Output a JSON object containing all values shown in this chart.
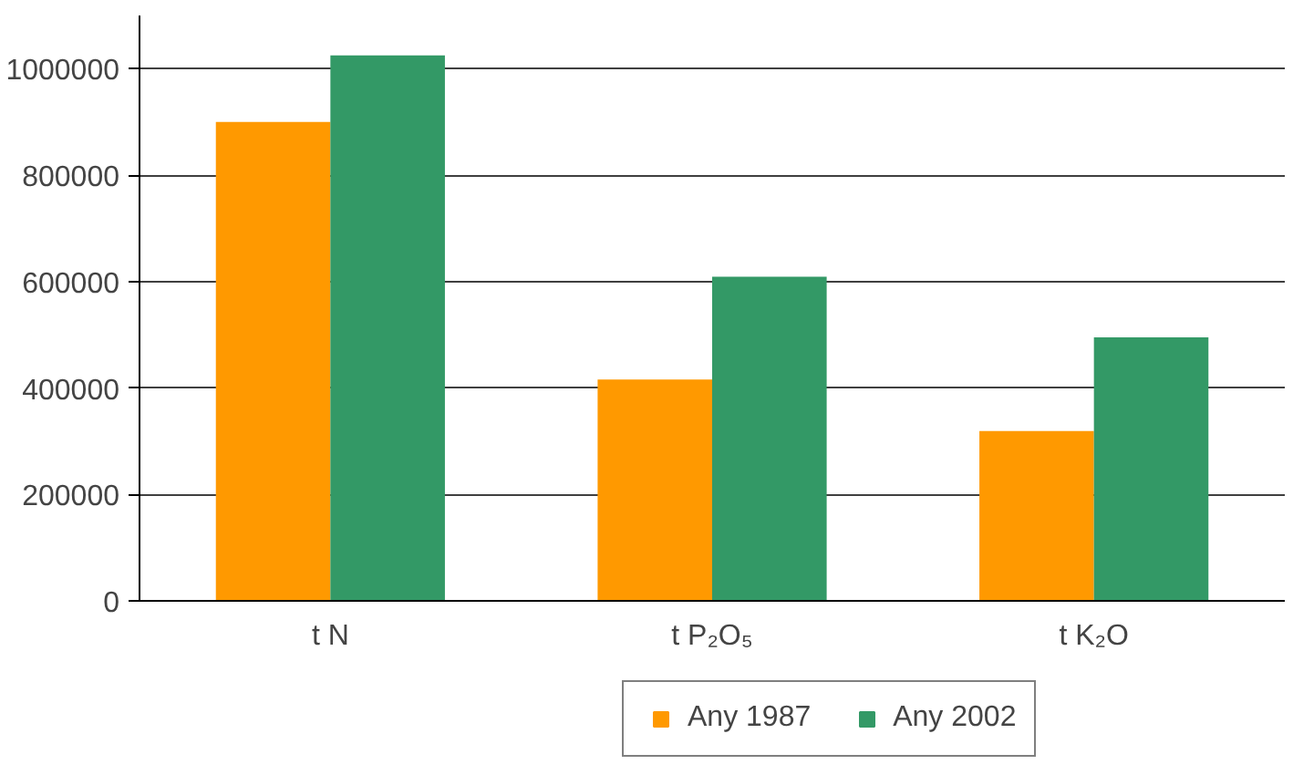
{
  "chart_data": {
    "type": "bar",
    "categories": [
      "t N",
      "t P₂O₅",
      "t K₂O"
    ],
    "series": [
      {
        "name": "Any 1987",
        "color": "#ff9900",
        "values": [
          900000,
          416000,
          319000
        ]
      },
      {
        "name": "Any 2002",
        "color": "#339966",
        "values": [
          1025000,
          609000,
          495000
        ]
      }
    ],
    "ylim": [
      0,
      1100000
    ],
    "yticks": [
      0,
      200000,
      400000,
      600000,
      800000,
      1000000
    ],
    "grid": "y",
    "legend": "bottom"
  }
}
